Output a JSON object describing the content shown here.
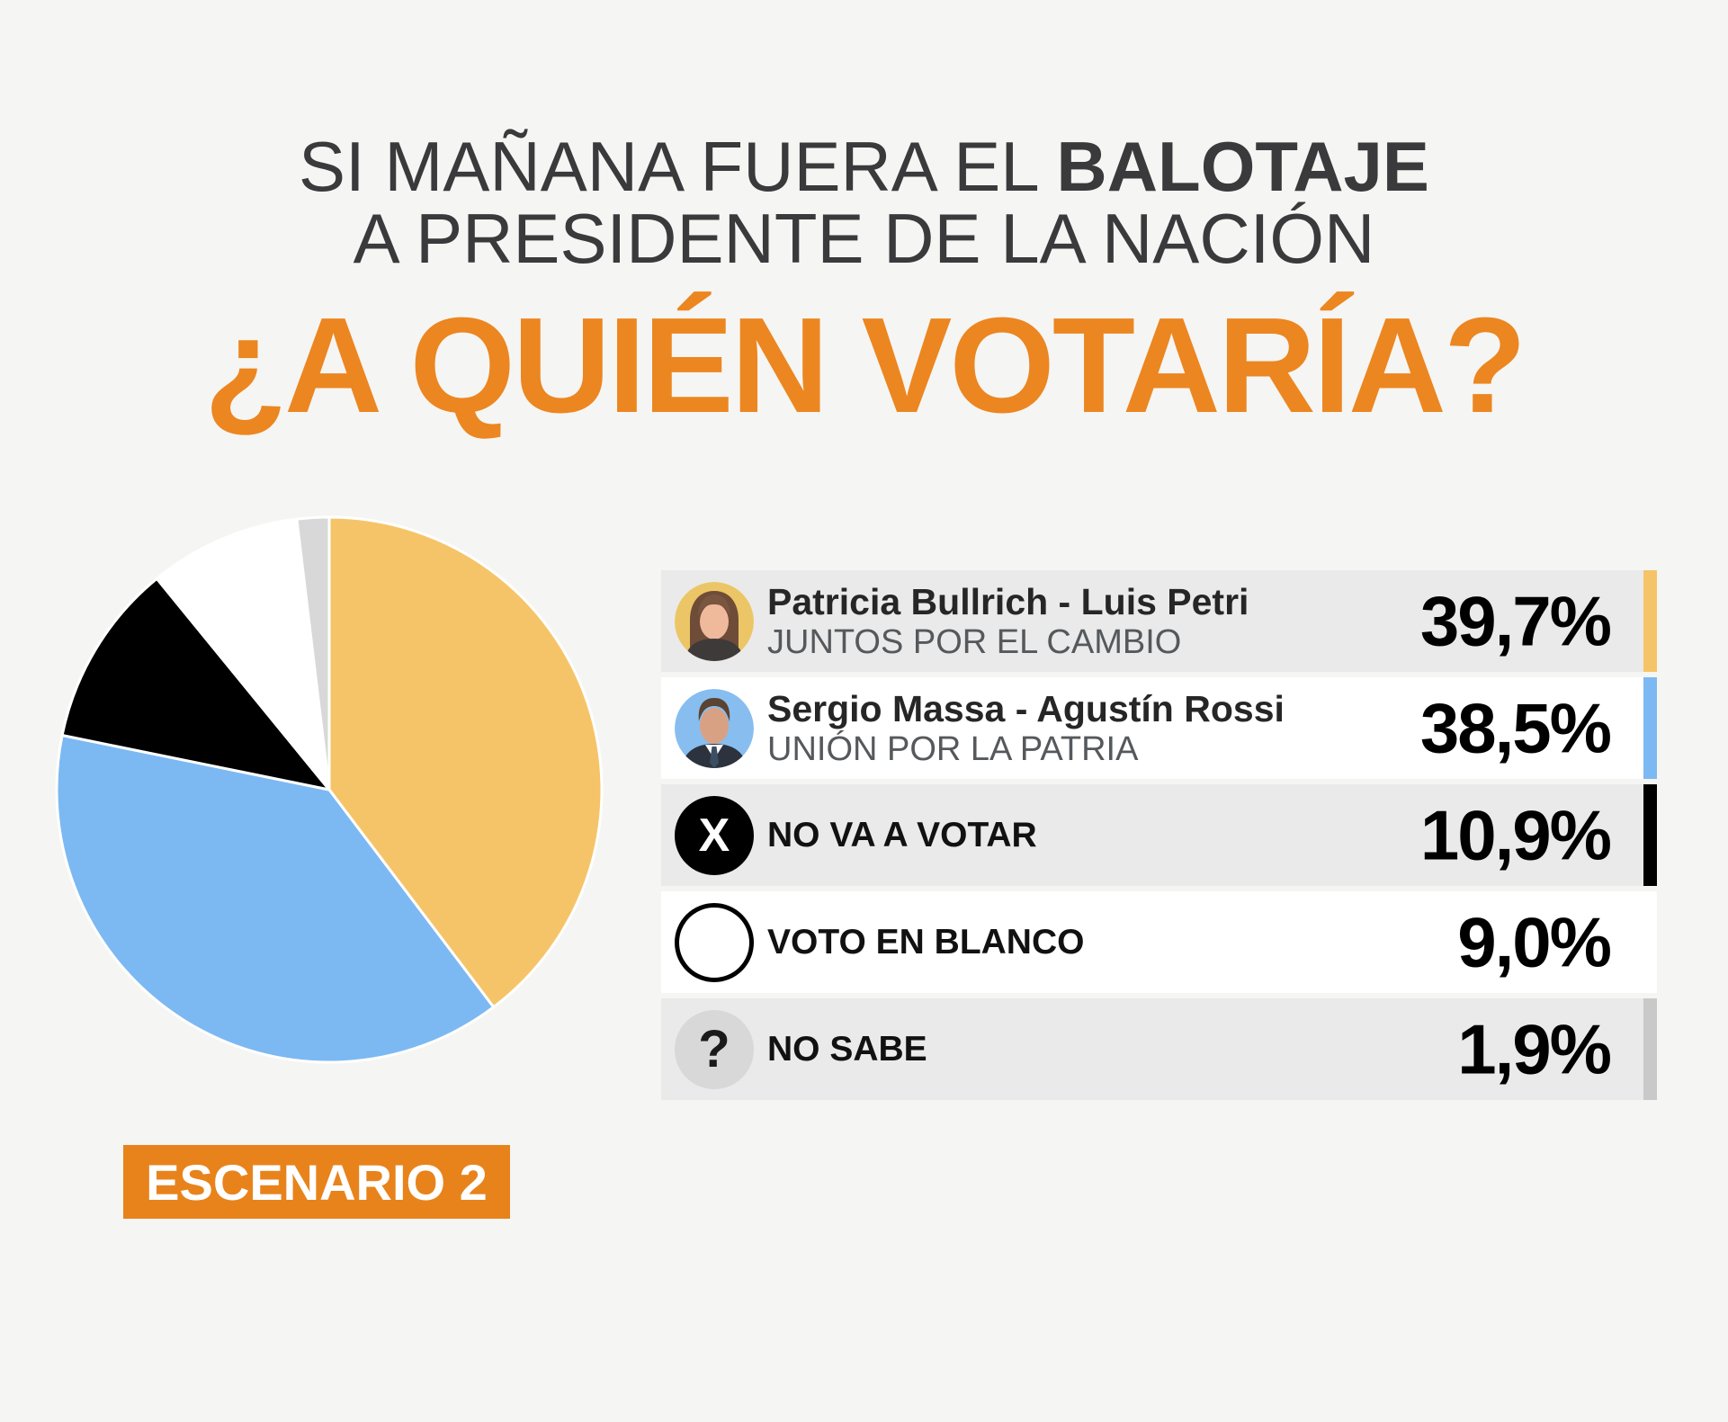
{
  "page": {
    "background": "#F5F5F3"
  },
  "header": {
    "line1_regular": "SI MAÑANA FUERA EL ",
    "line1_bold": "BALOTAJE",
    "line2": "A PRESIDENTE DE LA NACIÓN",
    "question": "¿A QUIÉN VOTARÍA?",
    "text_color": "#3A3A3C",
    "accent_color": "#EC8620"
  },
  "chart_data": {
    "type": "pie",
    "title": "¿A QUIÉN VOTARÍA?",
    "start_angle_deg": 0,
    "direction": "clockwise",
    "categories": [
      "Patricia Bullrich - Luis Petri (JUNTOS POR EL CAMBIO)",
      "Sergio Massa - Agustín Rossi (UNIÓN POR LA PATRIA)",
      "NO VA A VOTAR",
      "VOTO EN BLANCO",
      "NO SABE"
    ],
    "values": [
      39.7,
      38.5,
      10.9,
      9.0,
      1.9
    ],
    "value_labels": [
      "39,7%",
      "38,5%",
      "10,9%",
      "9,0%",
      "1,9%"
    ],
    "colors": [
      "#F6C468",
      "#7CB9F2",
      "#000000",
      "#FFFFFF",
      "#D8D8D8"
    ],
    "separator_color": "#FFFFFF",
    "legend_position": "right"
  },
  "legend": {
    "rows": [
      {
        "name": "Patricia Bullrich - Luis Petri",
        "party": "JUNTOS POR EL CAMBIO",
        "value": "39,7%",
        "icon": "bullrich-photo",
        "strip": "#F6C468",
        "bg": "#EAEAEA"
      },
      {
        "name": "Sergio Massa - Agustín Rossi",
        "party": "UNIÓN POR LA PATRIA",
        "value": "38,5%",
        "icon": "massa-photo",
        "strip": "#7CB9F2",
        "bg": "#FFFFFF"
      },
      {
        "name": "NO VA A VOTAR",
        "party": "",
        "value": "10,9%",
        "icon": "x-icon",
        "strip": "#000000",
        "bg": "#EAEAEA"
      },
      {
        "name": "VOTO EN BLANCO",
        "party": "",
        "value": "9,0%",
        "icon": "blank-vote-icon",
        "strip": "#FFFFFF",
        "bg": "#FFFFFF"
      },
      {
        "name": "NO SABE",
        "party": "",
        "value": "1,9%",
        "icon": "question-icon",
        "strip": "#C9C9C9",
        "bg": "#EAEAEA"
      }
    ]
  },
  "icons": {
    "x_glyph": "X",
    "question_glyph": "?"
  },
  "badge": {
    "label": "ESCENARIO 2",
    "bg": "#E8831C",
    "text_color": "#FFFFFF"
  }
}
